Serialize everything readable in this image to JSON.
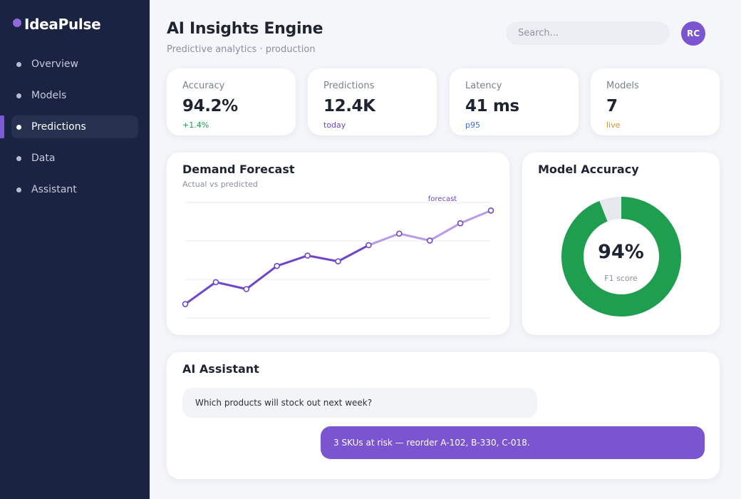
{
  "brand": {
    "name": "IdeaPulse"
  },
  "sidebar": {
    "items": [
      {
        "label": "Overview",
        "active": false
      },
      {
        "label": "Models",
        "active": false
      },
      {
        "label": "Predictions",
        "active": true
      },
      {
        "label": "Data",
        "active": false
      },
      {
        "label": "Assistant",
        "active": false
      }
    ]
  },
  "header": {
    "title": "AI Insights Engine",
    "subtitle": "Predictive analytics · production",
    "search_placeholder": "Search...",
    "avatar_initials": "RC"
  },
  "kpis": [
    {
      "label": "Accuracy",
      "value": "94.2%",
      "sub": "+1.4%",
      "sub_color": "#1e9a4a"
    },
    {
      "label": "Predictions",
      "value": "12.4K",
      "sub": "today",
      "sub_color": "#6a46c2"
    },
    {
      "label": "Latency",
      "value": "41 ms",
      "sub": "p95",
      "sub_color": "#3b6fd1"
    },
    {
      "label": "Models",
      "value": "7",
      "sub": "live",
      "sub_color": "#d89127"
    }
  ],
  "forecast": {
    "title": "Demand Forecast",
    "subtitle": "Actual vs predicted",
    "forecast_label": "forecast"
  },
  "accuracy": {
    "title": "Model Accuracy",
    "value": "94%",
    "label": "F1 score"
  },
  "assistant": {
    "title": "AI Assistant",
    "user_message": "Which products will stock out next week?",
    "ai_message": "3 SKUs at risk — reorder A-102, B-330, C-018."
  },
  "colors": {
    "accent": "#7a55cf",
    "sidebar_bg": "#1a2341",
    "actual_line": "#6f46c9",
    "forecast_line": "#b99ae8",
    "donut_fill": "#1f9e50",
    "donut_track": "#e6e8ee"
  },
  "chart_data": [
    {
      "type": "line",
      "title": "Demand Forecast",
      "subtitle": "Actual vs predicted",
      "ylim": [
        0,
        100
      ],
      "grid": true,
      "series": [
        {
          "name": "",
          "x": [
            0,
            1,
            2,
            3,
            4,
            5,
            6
          ],
          "values": [
            12,
            31,
            25,
            45,
            54,
            49,
            63
          ]
        },
        {
          "name": "forecast",
          "x": [
            6,
            7,
            8,
            9,
            10
          ],
          "values": [
            63,
            73,
            67,
            82,
            93
          ]
        }
      ],
      "annotations": [
        "forecast"
      ]
    },
    {
      "type": "pie",
      "title": "Model Accuracy",
      "categories": [
        "F1 score",
        "remainder"
      ],
      "values": [
        94,
        6
      ],
      "center_label": "94%"
    }
  ]
}
